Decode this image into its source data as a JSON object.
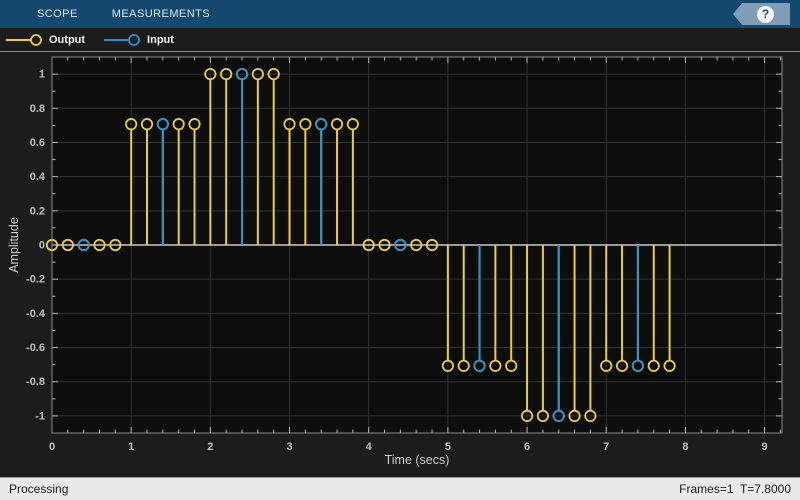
{
  "toolbar": {
    "tabs": [
      {
        "label": "SCOPE"
      },
      {
        "label": "MEASUREMENTS"
      }
    ],
    "help_glyph": "?"
  },
  "legend": {
    "items": [
      {
        "label": "Output",
        "color": "#EACD45"
      },
      {
        "label": "Input",
        "color": "#2E90CD"
      }
    ]
  },
  "chart_data": {
    "type": "stem",
    "xlabel": "Time (secs)",
    "ylabel": "Amplitude",
    "xlim": [
      0,
      9.22
    ],
    "ylim": [
      -1.1,
      1.1
    ],
    "x_ticks": [
      0,
      1,
      2,
      3,
      4,
      5,
      6,
      7,
      8,
      9
    ],
    "x_minor_step": 0.2,
    "y_ticks": [
      1,
      0.8,
      0.6,
      0.4,
      0.2,
      0,
      -0.2,
      -0.4,
      -0.6,
      -0.8,
      -1
    ],
    "y_minor_step": 0.1,
    "grid": true,
    "baseline": 0,
    "series": [
      {
        "name": "Output",
        "color": "#EACD45",
        "x": [
          0,
          0.2,
          0.4,
          0.6,
          0.8,
          1,
          1.2,
          1.4,
          1.6,
          1.8,
          2,
          2.2,
          2.4,
          2.6,
          2.8,
          3,
          3.2,
          3.4,
          3.6,
          3.8,
          4,
          4.2,
          4.4,
          4.6,
          4.8,
          5,
          5.2,
          5.4,
          5.6,
          5.8,
          6,
          6.2,
          6.4,
          6.6,
          6.8,
          7,
          7.2,
          7.4,
          7.6,
          7.8
        ],
        "y": [
          0,
          0,
          0,
          0,
          0,
          0.7071,
          0.7071,
          0.7071,
          0.7071,
          0.7071,
          1,
          1,
          1,
          1,
          1,
          0.7071,
          0.7071,
          0.7071,
          0.7071,
          0.7071,
          0,
          0,
          0,
          0,
          0,
          -0.7071,
          -0.7071,
          -0.7071,
          -0.7071,
          -0.7071,
          -1,
          -1,
          -1,
          -1,
          -1,
          -0.7071,
          -0.7071,
          -0.7071,
          -0.7071,
          -0.7071
        ]
      },
      {
        "name": "Input",
        "color": "#2E90CD",
        "x": [
          0.4,
          1.4,
          2.4,
          3.4,
          4.4,
          5.4,
          6.4,
          7.4
        ],
        "y": [
          0,
          0.7071,
          1,
          0.7071,
          0,
          -0.7071,
          -1,
          -0.7071
        ]
      }
    ],
    "colors": {
      "plot_bg": "#0d0d0d",
      "grid": "#323232",
      "baseline": "#f0f0f0",
      "box": "#8a8a8a",
      "tick": "#b8b8b8",
      "tick_label": "#c0c0c0"
    }
  },
  "status_bar": {
    "left": "Processing",
    "right": "Frames=1  T=7.8000"
  }
}
